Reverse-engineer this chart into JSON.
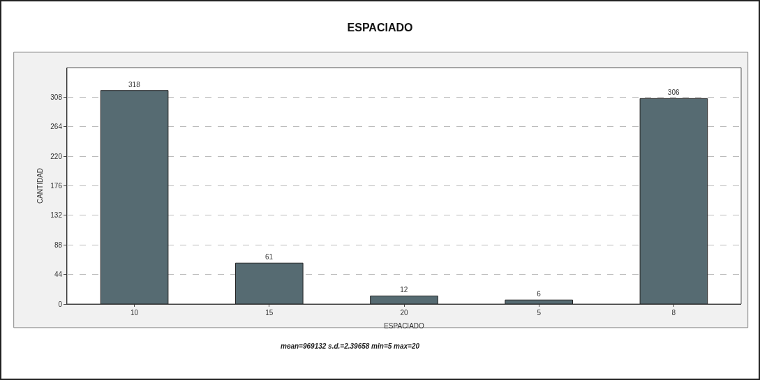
{
  "chart_data": {
    "type": "bar",
    "title": "ESPACIADO",
    "xlabel": "ESPACIADO",
    "ylabel": "CANTIDAD",
    "categories": [
      "10",
      "15",
      "20",
      "5",
      "8"
    ],
    "values": [
      318,
      61,
      12,
      6,
      306
    ],
    "color": "#566b72",
    "ylim": [
      0,
      352
    ],
    "yticks": [
      0,
      44,
      88,
      132,
      176,
      220,
      264,
      308
    ],
    "grid": "y",
    "data_labels": true,
    "annotations": [
      "mean=969132 s.d.=2.39658 min=5 max=20"
    ]
  }
}
